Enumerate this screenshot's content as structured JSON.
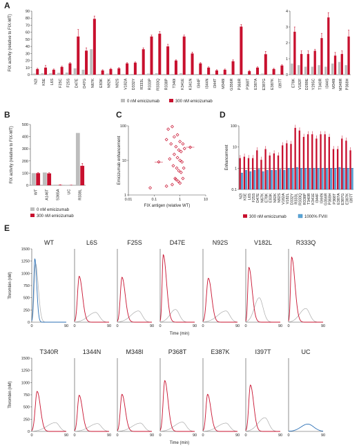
{
  "colors": {
    "red": "#c8102e",
    "gray": "#bdbdbd",
    "blue": "#2a6fb5",
    "lightblue": "#5ba7d6",
    "axis": "#444444"
  },
  "chart_data": [
    {
      "panel": "A",
      "type": "bar",
      "ylabel": "FIX activity (relative to FIX-WT)",
      "ylim": [
        0,
        90
      ],
      "yticks": [
        0,
        10,
        20,
        30,
        40,
        50,
        60,
        70,
        80,
        90
      ],
      "legend": [
        "0 nM emicizumab",
        "300 nM emicizumab"
      ],
      "categories": [
        "N2I",
        "K5E",
        "L6S",
        "F25C",
        "F25S",
        "D47E",
        "D47G",
        "N67K",
        "E83K",
        "N92K",
        "N92S",
        "V182A",
        "D332Y",
        "R333L",
        "R333P",
        "R333Q",
        "R338P",
        "T340I",
        "K341E",
        "K341N",
        "I344F",
        "I344N",
        "I344T",
        "M348I",
        "G356R",
        "P368R",
        "P368T",
        "E387A",
        "E387G",
        "E387K",
        "I397T"
      ],
      "series": [
        {
          "name": "0 nM emicizumab",
          "values": [
            1.5,
            2,
            2,
            2.5,
            3,
            9,
            7,
            36,
            1,
            1.5,
            1,
            1,
            1,
            1,
            1.5,
            2,
            1,
            1,
            2,
            1,
            1,
            1,
            1,
            1,
            1,
            1,
            1,
            1,
            1.5,
            1,
            1
          ]
        },
        {
          "name": "300 nM emicizumab",
          "values": [
            8,
            10,
            7,
            11,
            16,
            54,
            34,
            79,
            6,
            8,
            9,
            16,
            17,
            36,
            54,
            58,
            40,
            20,
            54,
            30,
            16,
            10,
            6,
            7,
            19,
            68,
            5,
            10,
            29,
            8,
            13
          ]
        }
      ],
      "errors": [
        1,
        3,
        1,
        1,
        1,
        10,
        4,
        4,
        1,
        1,
        1,
        1,
        1,
        2,
        2,
        3,
        3,
        1,
        2,
        2,
        1,
        1,
        1,
        1,
        2,
        3,
        1,
        1,
        4,
        1,
        1
      ]
    },
    {
      "panel": "A-inset",
      "type": "bar",
      "ylim": [
        0,
        4
      ],
      "yticks": [
        0,
        1,
        2,
        3,
        4
      ],
      "categories": [
        "E78K",
        "V182F",
        "D289E",
        "Y295C",
        "T340R",
        "I344S",
        "M348I",
        "M348R",
        "P368H"
      ],
      "series": [
        {
          "name": "0 nM emicizumab",
          "values": [
            0.7,
            0.6,
            0.5,
            0.5,
            0.6,
            0.5,
            0.7,
            0.8,
            0.6
          ]
        },
        {
          "name": "300 nM emicizumab",
          "values": [
            2.7,
            1.3,
            1.3,
            1.5,
            2.3,
            3.6,
            1.2,
            1.3,
            2.4
          ]
        }
      ],
      "errors": [
        0.3,
        0.2,
        0.2,
        0.1,
        0.3,
        0.3,
        0.2,
        0.2,
        0.4
      ]
    },
    {
      "panel": "B",
      "type": "bar",
      "ylabel": "FIX activity (relative to FIX-WT)",
      "ylim": [
        0,
        500
      ],
      "yticks": [
        0,
        100,
        200,
        300,
        400,
        500
      ],
      "legend": [
        "0 nM emicizumab",
        "300 nM emicizumab"
      ],
      "categories": [
        "WT",
        "A146T",
        "S365A",
        "UC",
        "R338L"
      ],
      "series": [
        {
          "name": "0 nM emicizumab",
          "values": [
            100,
            105,
            5,
            1,
            430
          ]
        },
        {
          "name": "300 nM emicizumab",
          "values": [
            100,
            98,
            3,
            1,
            160
          ]
        }
      ],
      "errors": [
        5,
        6,
        2,
        1,
        20
      ]
    },
    {
      "panel": "C",
      "type": "scatter",
      "xlabel": "FIX antigen (relative WT)",
      "ylabel": "Emicizumab enhancement",
      "xticks": [
        "0.01",
        "0.1",
        "1",
        "10"
      ],
      "yticks": [
        "1",
        "10",
        "100"
      ],
      "xscale": "log",
      "yscale": "log",
      "xlim": [
        0.01,
        10
      ],
      "ylim": [
        1,
        100
      ],
      "points": [
        [
          0.5,
          95
        ],
        [
          0.35,
          80
        ],
        [
          0.3,
          40
        ],
        [
          0.45,
          30
        ],
        [
          0.6,
          48
        ],
        [
          0.8,
          55
        ],
        [
          1.0,
          35
        ],
        [
          1.3,
          30
        ],
        [
          0.7,
          25
        ],
        [
          0.9,
          20
        ],
        [
          1.1,
          18
        ],
        [
          1.5,
          22
        ],
        [
          2.5,
          24
        ],
        [
          0.6,
          15
        ],
        [
          0.8,
          12
        ],
        [
          0.4,
          11
        ],
        [
          1.0,
          10
        ],
        [
          1.2,
          9
        ],
        [
          0.55,
          7
        ],
        [
          0.75,
          6
        ],
        [
          0.9,
          5
        ],
        [
          1.1,
          4.5
        ],
        [
          1.4,
          6
        ],
        [
          0.65,
          3
        ],
        [
          0.85,
          2.5
        ],
        [
          1.0,
          2.2
        ],
        [
          0.5,
          2
        ],
        [
          0.3,
          1.8
        ],
        [
          0.07,
          1.6
        ],
        [
          0.15,
          9
        ],
        [
          0.7,
          2.8
        ],
        [
          1.3,
          3
        ]
      ]
    },
    {
      "panel": "D",
      "type": "bar",
      "ylabel": "Enhancement",
      "yscale": "log",
      "ylim": [
        0.1,
        100
      ],
      "yticks": [
        "0.1",
        "1",
        "10",
        "100"
      ],
      "legend": [
        "300 nM emicizumab",
        "1000% FVIII"
      ],
      "categories": [
        "N2I",
        "K5E",
        "L6S",
        "F25S",
        "D47E",
        "N67K",
        "E78K",
        "E83K",
        "N92K",
        "N92S",
        "V182A",
        "V182L",
        "D332Y",
        "R333L",
        "R333Q",
        "R338P",
        "T340R",
        "K341E",
        "I344F",
        "I344N",
        "G356R",
        "P368H",
        "P368T",
        "E387A",
        "E387G",
        "E387K",
        "I397T"
      ],
      "series": [
        {
          "name": "300 nM emicizumab",
          "values": [
            3,
            3.5,
            3,
            3,
            7,
            2.5,
            8,
            4,
            5,
            4,
            12,
            15,
            14,
            80,
            60,
            30,
            40,
            40,
            25,
            40,
            40,
            30,
            8,
            8,
            25,
            20,
            7
          ]
        },
        {
          "name": "1000% FVIII",
          "values": [
            0.6,
            0.8,
            0.7,
            0.8,
            0.9,
            0.7,
            0.8,
            0.8,
            0.8,
            0.9,
            0.8,
            1,
            1,
            1.1,
            1,
            1,
            1,
            1,
            1,
            1,
            1,
            1,
            1,
            1.1,
            1,
            1,
            1
          ]
        }
      ]
    },
    {
      "panel": "E",
      "type": "line",
      "ylabel": "Thrombin (nM)",
      "xlabel": "Time (min)",
      "ylim": [
        0,
        1500
      ],
      "yticks": [
        0,
        250,
        500,
        750,
        1000,
        1250,
        1500
      ],
      "xticks": [
        0,
        90
      ],
      "traces": [
        {
          "title": "WT",
          "peak": 1300,
          "peakTime": 8,
          "noEmiPeak": 1200,
          "noEmiTime": 10,
          "kind": "wt"
        },
        {
          "title": "L6S",
          "peak": 940,
          "peakTime": 12,
          "noEmiPeak": 200,
          "noEmiTime": 55,
          "kind": "mut"
        },
        {
          "title": "F25S",
          "peak": 920,
          "peakTime": 12,
          "noEmiPeak": 230,
          "noEmiTime": 55,
          "kind": "mut"
        },
        {
          "title": "D47E",
          "peak": 1380,
          "peakTime": 8,
          "noEmiPeak": 260,
          "noEmiTime": 40,
          "kind": "mut"
        },
        {
          "title": "N92S",
          "peak": 900,
          "peakTime": 14,
          "noEmiPeak": 230,
          "noEmiTime": 60,
          "kind": "mut"
        },
        {
          "title": "V182L",
          "peak": 1120,
          "peakTime": 8,
          "noEmiPeak": 500,
          "noEmiTime": 35,
          "kind": "mut"
        },
        {
          "title": "R333Q",
          "peak": 1330,
          "peakTime": 8,
          "noEmiPeak": 280,
          "noEmiTime": 45,
          "kind": "mut"
        },
        {
          "title": "T340R",
          "peak": 820,
          "peakTime": 14,
          "noEmiPeak": 180,
          "noEmiTime": 62,
          "kind": "mut"
        },
        {
          "title": "1344N",
          "peak": 740,
          "peakTime": 12,
          "noEmiPeak": 160,
          "noEmiTime": 60,
          "kind": "mut"
        },
        {
          "title": "M348I",
          "peak": 760,
          "peakTime": 12,
          "noEmiPeak": 170,
          "noEmiTime": 60,
          "kind": "mut"
        },
        {
          "title": "P368T",
          "peak": 1040,
          "peakTime": 12,
          "noEmiPeak": 190,
          "noEmiTime": 58,
          "kind": "mut"
        },
        {
          "title": "E387K",
          "peak": 760,
          "peakTime": 12,
          "noEmiPeak": 170,
          "noEmiTime": 60,
          "kind": "mut"
        },
        {
          "title": "I397T",
          "peak": 950,
          "peakTime": 12,
          "noEmiPeak": 280,
          "noEmiTime": 50,
          "kind": "mut"
        },
        {
          "title": "UC",
          "peak": 150,
          "peakTime": 50,
          "noEmiPeak": 0,
          "noEmiTime": 0,
          "kind": "uc"
        }
      ]
    }
  ],
  "panel_labels": [
    "A",
    "B",
    "C",
    "D",
    "E"
  ]
}
